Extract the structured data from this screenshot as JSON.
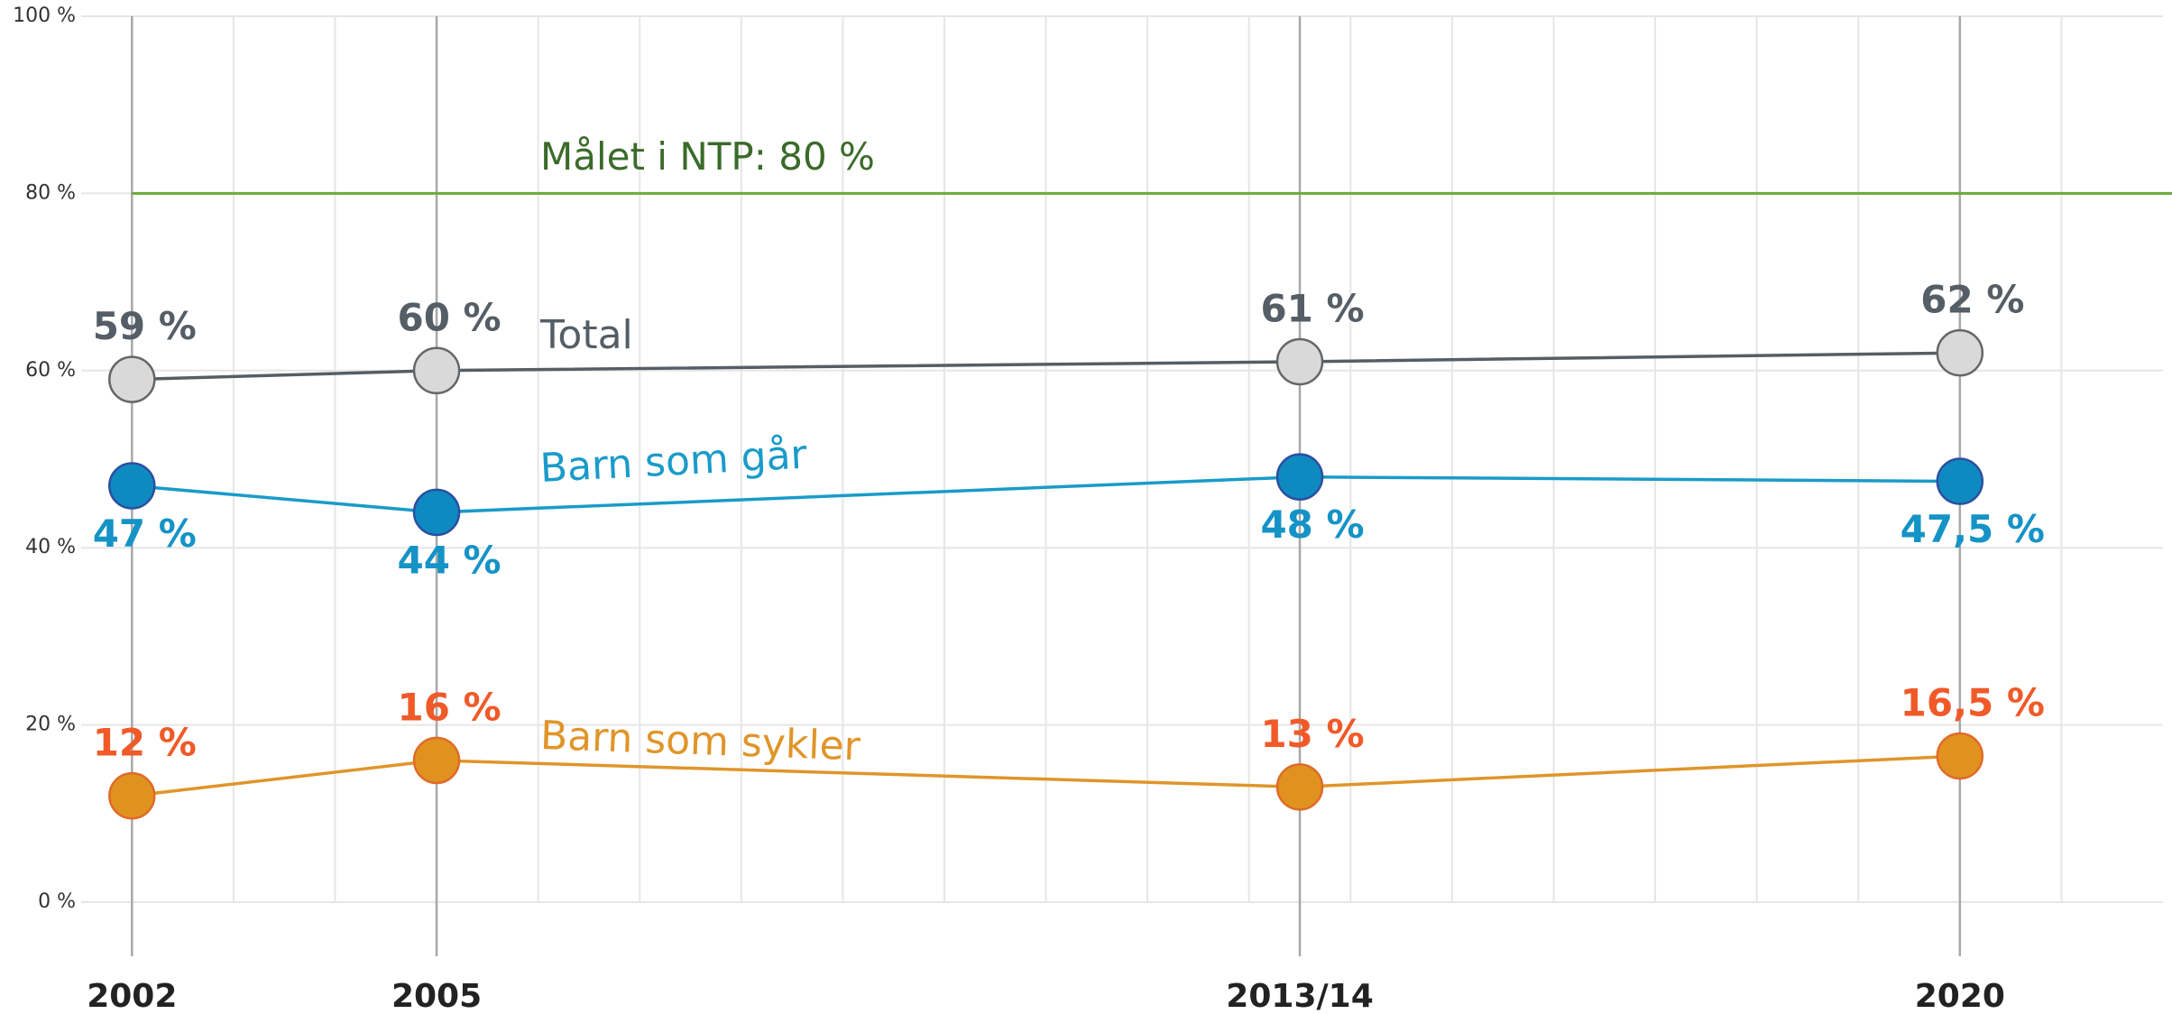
{
  "chart_data": {
    "type": "line",
    "x": [
      2002,
      2005,
      2013.5,
      2020
    ],
    "xlim": [
      2001.5,
      2022
    ],
    "xticks": [
      2002,
      2005,
      {
        "value": 2013.5,
        "label": "2013/14"
      },
      2020
    ],
    "minor_xticks": [
      2003,
      2004,
      2006,
      2007,
      2008,
      2009,
      2010,
      2011,
      2012,
      2013,
      2014,
      2015,
      2016,
      2017,
      2018,
      2019,
      2021
    ],
    "ylim": [
      0,
      100
    ],
    "yticks": [
      {
        "value": 0,
        "label": "0 %"
      },
      {
        "value": 20,
        "label": "20 %"
      },
      {
        "value": 40,
        "label": "40 %"
      },
      {
        "value": 60,
        "label": "60 %"
      },
      {
        "value": 80,
        "label": "80 %"
      },
      {
        "value": 100,
        "label": "100 %"
      }
    ],
    "grid": true,
    "target": {
      "value": 80,
      "label": "Målet i NTP: 80 %",
      "color": "#6aaa3a"
    },
    "series": [
      {
        "name": "Total",
        "color": "#555e66",
        "marker_color": "#d9d9d9",
        "label_color": "#555e66",
        "values": [
          59,
          60,
          61,
          62
        ],
        "value_labels": [
          "59 %",
          "60 %",
          "61 %",
          "62 %"
        ]
      },
      {
        "name": "Barn som går",
        "color": "#1a9bc9",
        "marker_color": "#0f8ac0",
        "label_color": "#1593c6",
        "values": [
          47,
          44,
          48,
          47.5
        ],
        "value_labels": [
          "47 %",
          "44 %",
          "48 %",
          "47,5 %"
        ]
      },
      {
        "name": "Barn som sykler",
        "color": "#e0952a",
        "marker_color": "#e0921f",
        "label_color": "#f05a28",
        "values": [
          12,
          16,
          13,
          16.5
        ],
        "value_labels": [
          "12 %",
          "16 %",
          "13 %",
          "16,5 %"
        ]
      }
    ]
  }
}
